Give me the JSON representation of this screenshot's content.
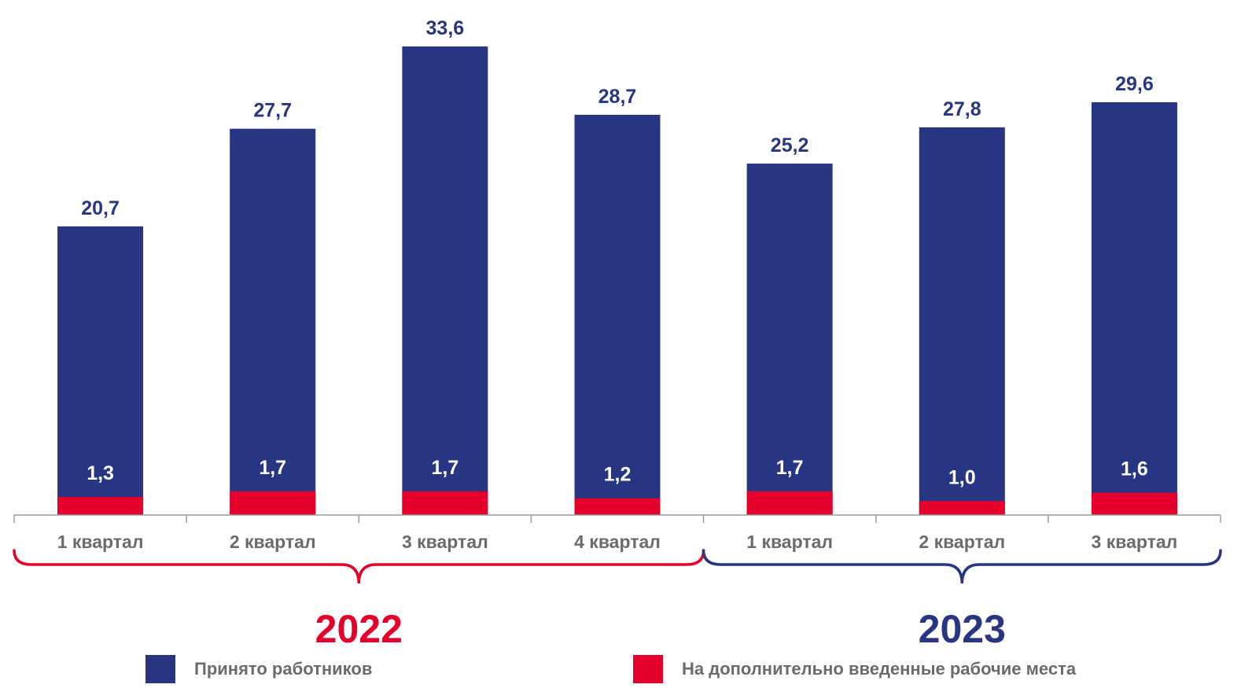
{
  "chart_data": {
    "type": "bar",
    "categories": [
      "1 квартал",
      "2 квартал",
      "3 квартал",
      "4 квартал",
      "1 квартал",
      "2 квартал",
      "3 квартал"
    ],
    "groups": [
      {
        "label": "2022",
        "color": "#E4002B",
        "span": [
          0,
          3
        ]
      },
      {
        "label": "2023",
        "color": "#283583",
        "span": [
          4,
          6
        ]
      }
    ],
    "series": [
      {
        "name": "Принято работников",
        "color": "#283583",
        "values": [
          20.7,
          27.7,
          33.6,
          28.7,
          25.2,
          27.8,
          29.6
        ],
        "labels": [
          "20,7",
          "27,7",
          "33,6",
          "28,7",
          "25,2",
          "27,8",
          "29,6"
        ]
      },
      {
        "name": "На дополнительно введенные рабочие места",
        "color": "#E4002B",
        "values": [
          1.3,
          1.7,
          1.7,
          1.2,
          1.7,
          1.0,
          1.6
        ],
        "labels": [
          "1,3",
          "1,7",
          "1,7",
          "1,2",
          "1,7",
          "1,0",
          "1,6"
        ]
      }
    ],
    "ylim": [
      0,
      34
    ],
    "grid": false,
    "legend_position": "bottom"
  },
  "legend": {
    "hired": "Принято работников",
    "extra": "На дополнительно введенные рабочие места"
  }
}
